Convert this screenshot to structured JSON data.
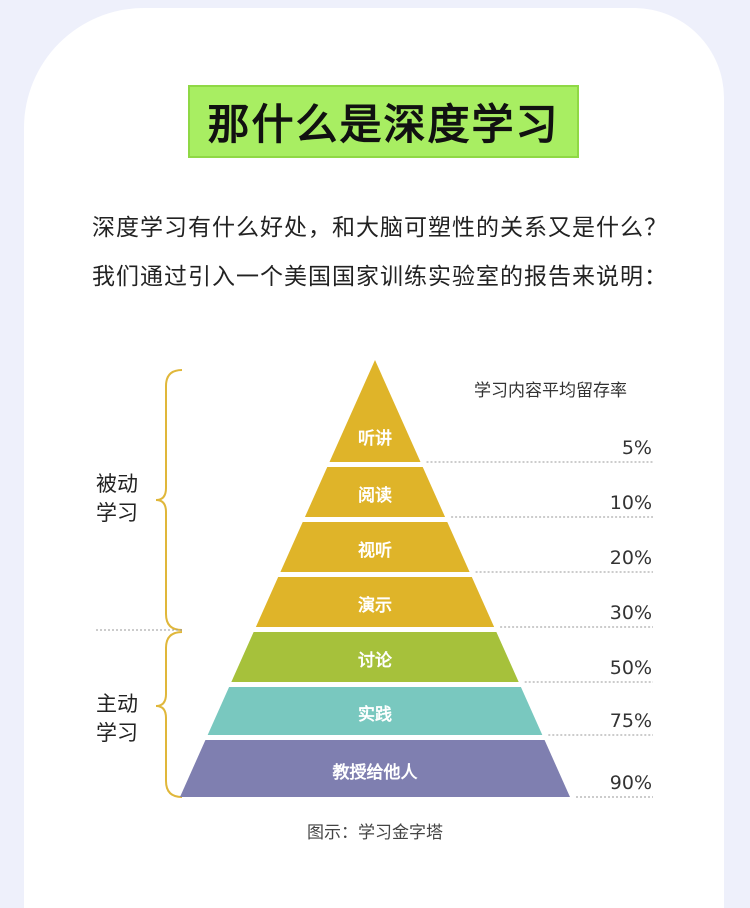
{
  "title": "那什么是深度学习",
  "intro_lines": [
    "深度学习有什么好处，和大脑可塑性的关系又是什么？",
    "我们通过引入一个美国国家训练实验室的报告来说明："
  ],
  "legend_heading": "学习内容平均留存率",
  "groups": {
    "passive": "被动\n学习",
    "active": "主动\n学习"
  },
  "tiers": [
    {
      "label": "听讲",
      "rate": "5%",
      "color": "#dfb429"
    },
    {
      "label": "阅读",
      "rate": "10%",
      "color": "#dfb429"
    },
    {
      "label": "视听",
      "rate": "20%",
      "color": "#dfb429"
    },
    {
      "label": "演示",
      "rate": "30%",
      "color": "#dfb429"
    },
    {
      "label": "讨论",
      "rate": "50%",
      "color": "#a6c13b"
    },
    {
      "label": "实践",
      "rate": "75%",
      "color": "#79c8bf"
    },
    {
      "label": "教授给他人",
      "rate": "90%",
      "color": "#7f7fb0"
    }
  ],
  "caption": "图示：学习金字塔"
}
